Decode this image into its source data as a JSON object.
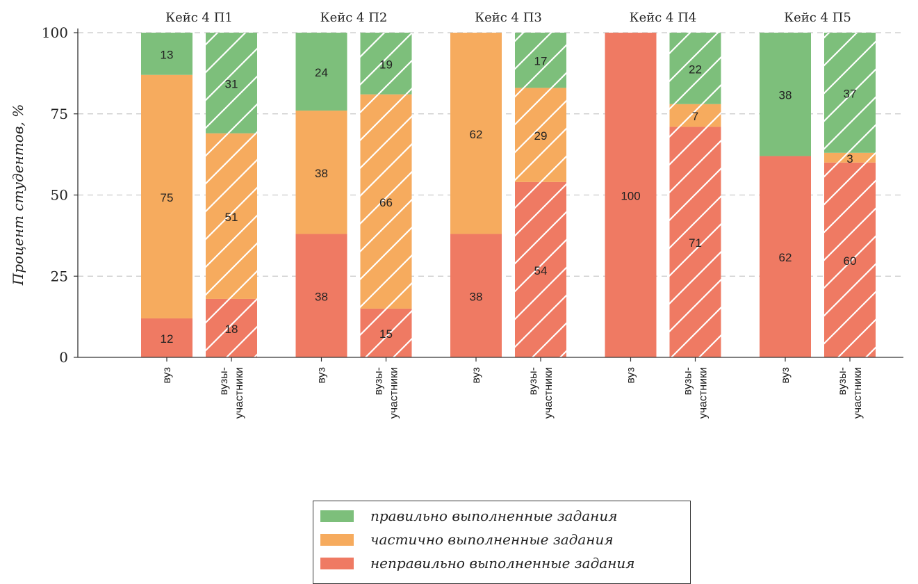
{
  "colors": {
    "correct": "#7dbf7b",
    "partial": "#f6ab5e",
    "incorrect": "#ef7a63",
    "axis": "#333333",
    "grid": "#c8c8c8",
    "hatch": "#ffffff"
  },
  "chart_data": {
    "type": "bar",
    "stacked": true,
    "ylabel": "Процент студентов, %",
    "xlabel": "",
    "ylim": [
      0,
      100
    ],
    "yticks": [
      0,
      25,
      50,
      75,
      100
    ],
    "grid": "horizontal dashed",
    "legend_position": "bottom-center",
    "groups": [
      {
        "title": "Кейс 4 П1",
        "bars": [
          {
            "category": "вуз",
            "hatched": false,
            "correct": 13,
            "partial": 75,
            "incorrect": 12
          },
          {
            "category": "вузы-\nучастники",
            "hatched": true,
            "correct": 31,
            "partial": 51,
            "incorrect": 18
          }
        ]
      },
      {
        "title": "Кейс 4 П2",
        "bars": [
          {
            "category": "вуз",
            "hatched": false,
            "correct": 24,
            "partial": 38,
            "incorrect": 38
          },
          {
            "category": "вузы-\nучастники",
            "hatched": true,
            "correct": 19,
            "partial": 66,
            "incorrect": 15
          }
        ]
      },
      {
        "title": "Кейс 4 П3",
        "bars": [
          {
            "category": "вуз",
            "hatched": false,
            "correct": 0,
            "partial": 62,
            "incorrect": 38
          },
          {
            "category": "вузы-\nучастники",
            "hatched": true,
            "correct": 17,
            "partial": 29,
            "incorrect": 54
          }
        ]
      },
      {
        "title": "Кейс 4 П4",
        "bars": [
          {
            "category": "вуз",
            "hatched": false,
            "correct": 0,
            "partial": 0,
            "incorrect": 100
          },
          {
            "category": "вузы-\nучастники",
            "hatched": true,
            "correct": 22,
            "partial": 7,
            "incorrect": 71
          }
        ]
      },
      {
        "title": "Кейс 4 П5",
        "bars": [
          {
            "category": "вуз",
            "hatched": false,
            "correct": 38,
            "partial": 0,
            "incorrect": 62
          },
          {
            "category": "вузы-\nучастники",
            "hatched": true,
            "correct": 37,
            "partial": 3,
            "incorrect": 60
          }
        ]
      }
    ],
    "series": [
      {
        "key": "correct",
        "name": "правильно выполненные задания"
      },
      {
        "key": "partial",
        "name": "частично выполненные задания"
      },
      {
        "key": "incorrect",
        "name": "неправильно выполненные задания"
      }
    ]
  }
}
